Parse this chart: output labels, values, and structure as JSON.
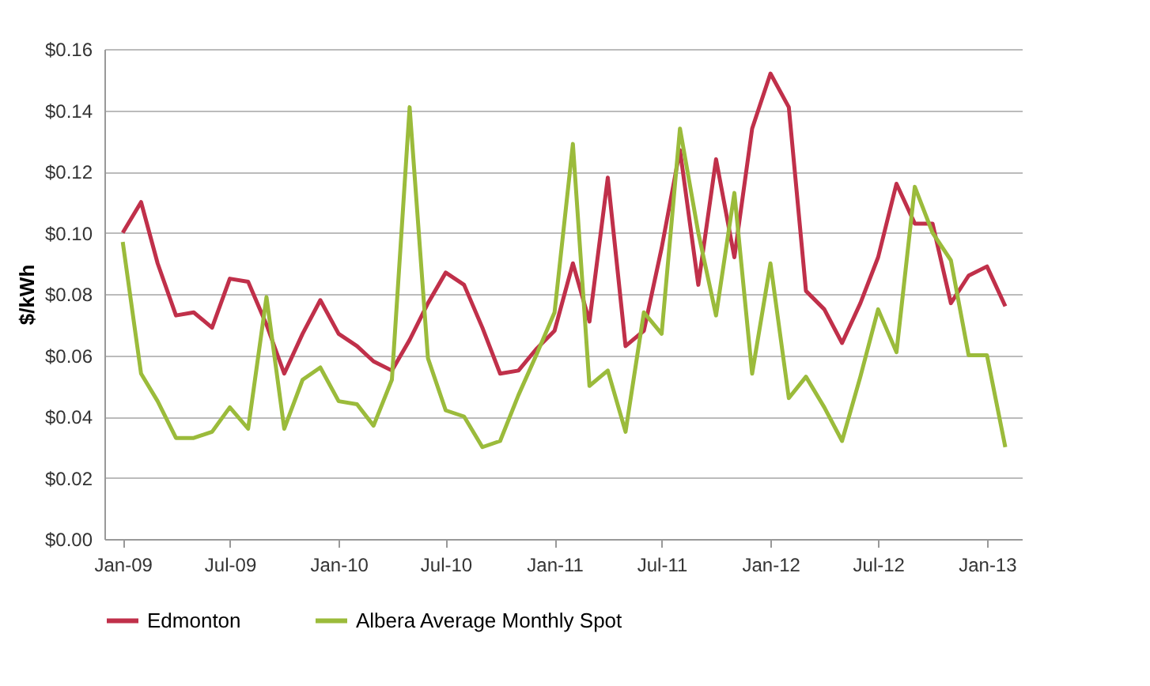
{
  "chart_data": {
    "type": "line",
    "ylabel": "$/kWh",
    "x": [
      "2009-01",
      "2009-02",
      "2009-03",
      "2009-04",
      "2009-05",
      "2009-06",
      "2009-07",
      "2009-08",
      "2009-09",
      "2009-10",
      "2009-11",
      "2009-12",
      "2010-01",
      "2010-02",
      "2010-03",
      "2010-04",
      "2010-05",
      "2010-06",
      "2010-07",
      "2010-08",
      "2010-09",
      "2010-10",
      "2010-11",
      "2010-12",
      "2011-01",
      "2011-02",
      "2011-03",
      "2011-04",
      "2011-05",
      "2011-06",
      "2011-07",
      "2011-08",
      "2011-09",
      "2011-10",
      "2011-11",
      "2011-12",
      "2012-01",
      "2012-02",
      "2012-03",
      "2012-04",
      "2012-05",
      "2012-06",
      "2012-07",
      "2012-08",
      "2012-09",
      "2012-10",
      "2012-11",
      "2012-12",
      "2013-01",
      "2013-02"
    ],
    "series": [
      {
        "name": "Edmonton",
        "color": "#c0304a",
        "values": [
          0.1,
          0.11,
          0.09,
          0.073,
          0.074,
          0.069,
          0.085,
          0.084,
          0.07,
          0.054,
          0.067,
          0.078,
          0.067,
          0.063,
          0.058,
          0.055,
          0.065,
          0.077,
          0.087,
          0.083,
          0.069,
          0.054,
          0.055,
          0.062,
          0.068,
          0.09,
          0.071,
          0.118,
          0.063,
          0.068,
          0.095,
          0.127,
          0.083,
          0.124,
          0.092,
          0.134,
          0.152,
          0.141,
          0.081,
          0.075,
          0.064,
          0.077,
          0.092,
          0.116,
          0.103,
          0.103,
          0.077,
          0.086,
          0.089,
          0.076
        ]
      },
      {
        "name": "Albera Average Monthly Spot",
        "color": "#9bbb3b",
        "values": [
          0.097,
          0.054,
          0.045,
          0.033,
          0.033,
          0.035,
          0.043,
          0.036,
          0.079,
          0.036,
          0.052,
          0.056,
          0.045,
          0.044,
          0.037,
          0.052,
          0.141,
          0.059,
          0.042,
          0.04,
          0.03,
          0.032,
          0.047,
          0.06,
          0.074,
          0.129,
          0.05,
          0.055,
          0.035,
          0.074,
          0.067,
          0.134,
          0.1,
          0.073,
          0.113,
          0.054,
          0.09,
          0.046,
          0.053,
          0.043,
          0.032,
          0.053,
          0.075,
          0.061,
          0.115,
          0.1,
          0.091,
          0.06,
          0.06,
          0.03
        ]
      }
    ],
    "xlim": [
      "2008-12",
      "2013-03"
    ],
    "xticks": [
      {
        "value": "2009-01",
        "label": "Jan-09"
      },
      {
        "value": "2009-07",
        "label": "Jul-09"
      },
      {
        "value": "2010-01",
        "label": "Jan-10"
      },
      {
        "value": "2010-07",
        "label": "Jul-10"
      },
      {
        "value": "2011-01",
        "label": "Jan-11"
      },
      {
        "value": "2011-07",
        "label": "Jul-11"
      },
      {
        "value": "2012-01",
        "label": "Jan-12"
      },
      {
        "value": "2012-07",
        "label": "Jul-12"
      },
      {
        "value": "2013-01",
        "label": "Jan-13"
      }
    ],
    "ylim": [
      0,
      0.16
    ],
    "yticks": [
      {
        "value": 0,
        "label": "$0.00"
      },
      {
        "value": 0.02,
        "label": "$0.02"
      },
      {
        "value": 0.04,
        "label": "$0.04"
      },
      {
        "value": 0.06,
        "label": "$0.06"
      },
      {
        "value": 0.08,
        "label": "$0.08"
      },
      {
        "value": 0.1,
        "label": "$0.10"
      },
      {
        "value": 0.12,
        "label": "$0.12"
      },
      {
        "value": 0.14,
        "label": "$0.14"
      },
      {
        "value": 0.16,
        "label": "$0.16"
      }
    ],
    "grid": "y",
    "legend": "bottom",
    "marker": "none",
    "line_style": "solid"
  }
}
